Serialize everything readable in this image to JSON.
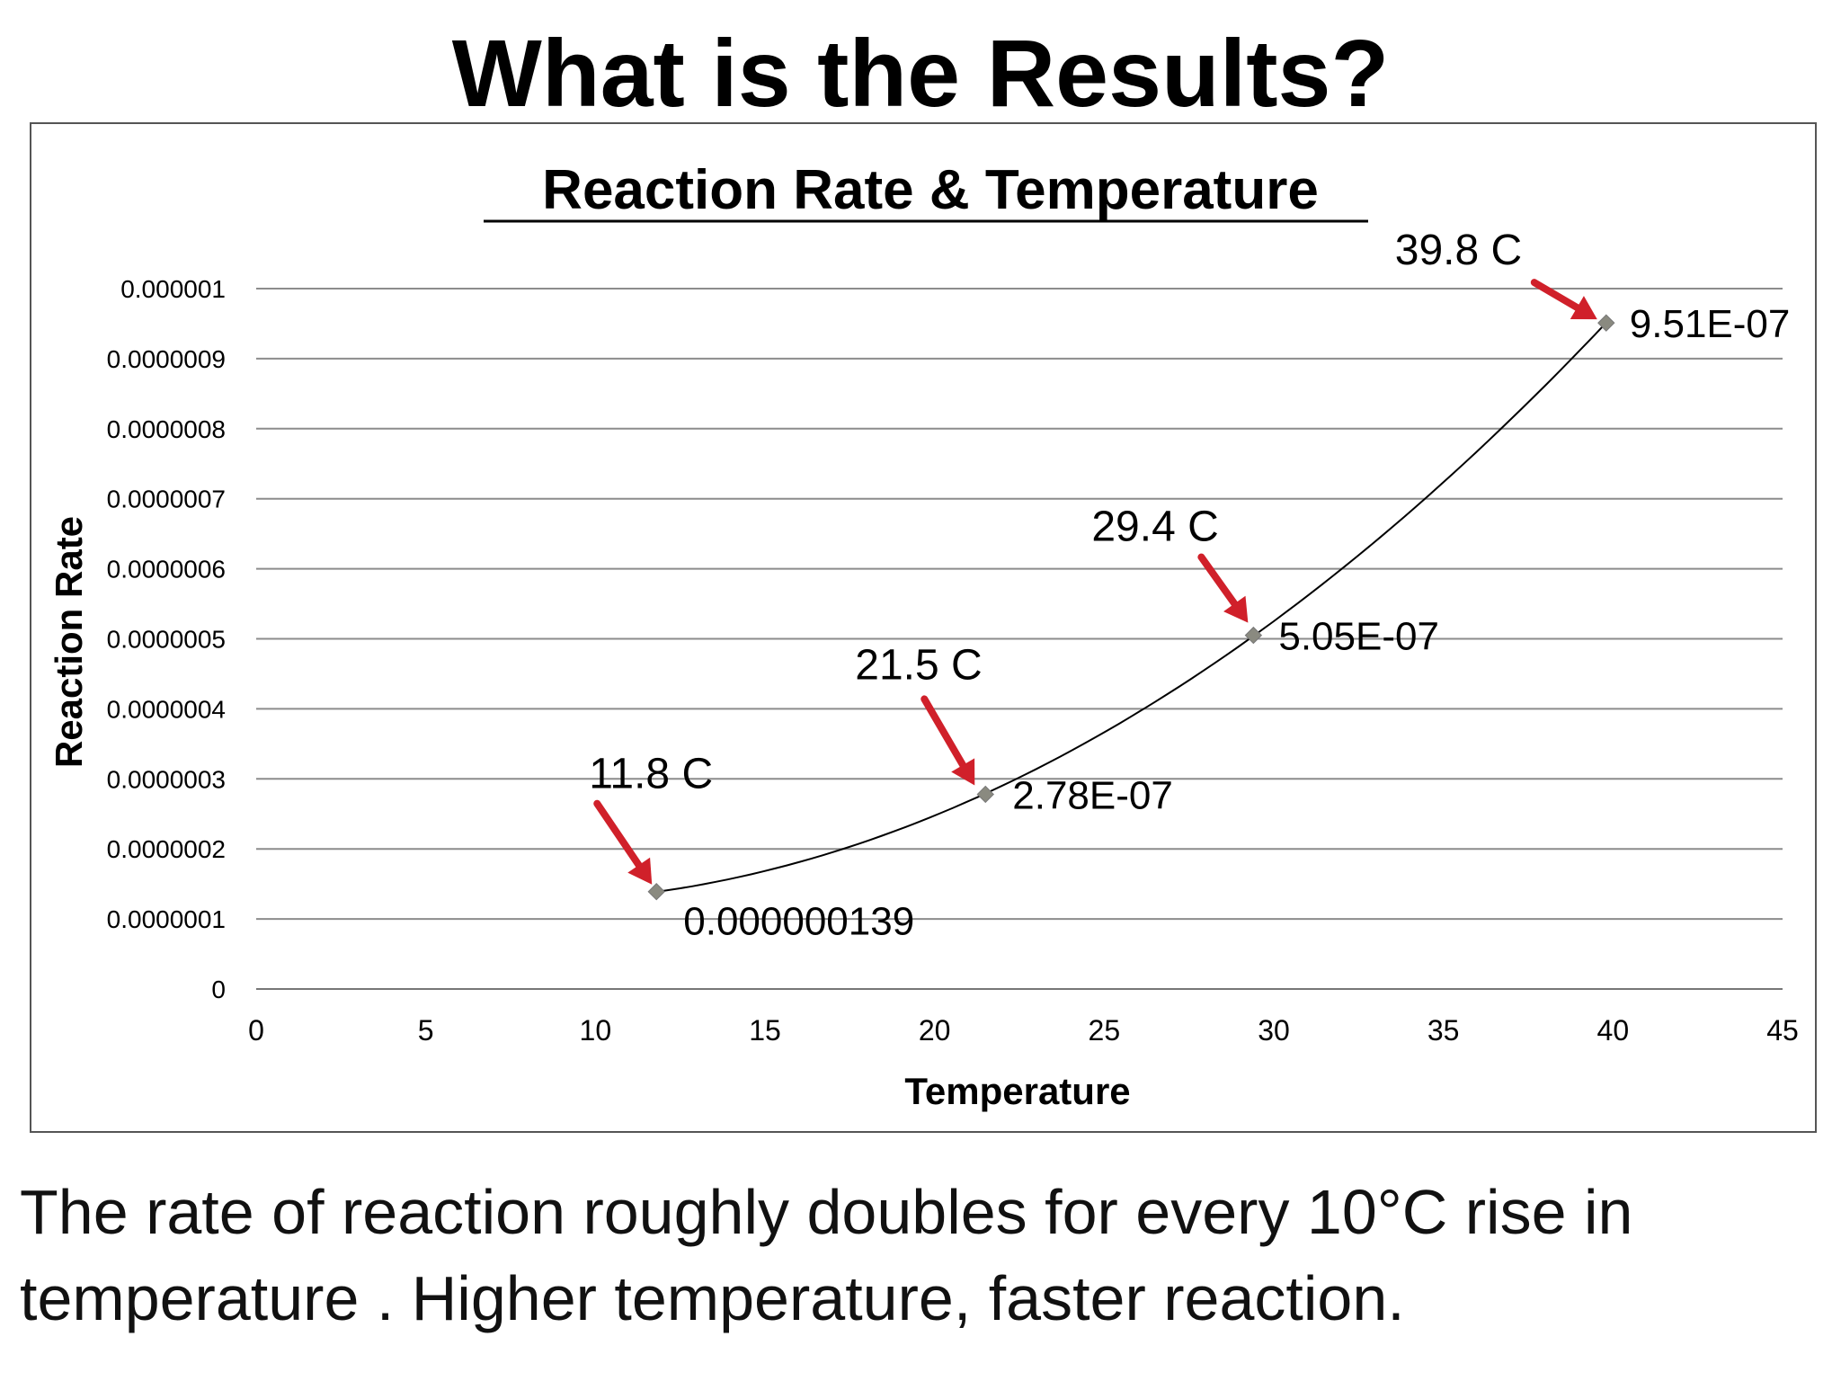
{
  "slide": {
    "title": "What is the Results?",
    "caption_line1": "The rate of reaction roughly doubles for every 10°C rise in",
    "caption_line2": "temperature . Higher temperature, faster reaction."
  },
  "colors": {
    "arrow": "#d0202a",
    "marker": "#8a8a80",
    "grid": "#8c8c8c",
    "curve": "#000000"
  },
  "chart_data": {
    "type": "scatter",
    "title": "Reaction Rate & Temperature",
    "xlabel": "Temperature",
    "ylabel": "Reaction Rate",
    "xlim": [
      0,
      45
    ],
    "ylim": [
      0,
      1e-06
    ],
    "x_ticks": [
      "0",
      "5",
      "10",
      "15",
      "20",
      "25",
      "30",
      "35",
      "40",
      "45"
    ],
    "y_ticks": [
      "0",
      "0.0000001",
      "0.0000002",
      "0.0000003",
      "0.0000004",
      "0.0000005",
      "0.0000006",
      "0.0000007",
      "0.0000008",
      "0.0000009",
      "0.000001"
    ],
    "grid": "horizontal",
    "trendline": "polynomial",
    "points": [
      {
        "x": 11.8,
        "y": 1.39e-07,
        "value_label": "0.000000139",
        "temp_label": "11.8 C"
      },
      {
        "x": 21.5,
        "y": 2.78e-07,
        "value_label": "2.78E-07",
        "temp_label": "21.5 C"
      },
      {
        "x": 29.4,
        "y": 5.05e-07,
        "value_label": "5.05E-07",
        "temp_label": "29.4 C"
      },
      {
        "x": 39.8,
        "y": 9.51e-07,
        "value_label": "9.51E-07",
        "temp_label": "39.8 C"
      }
    ]
  }
}
